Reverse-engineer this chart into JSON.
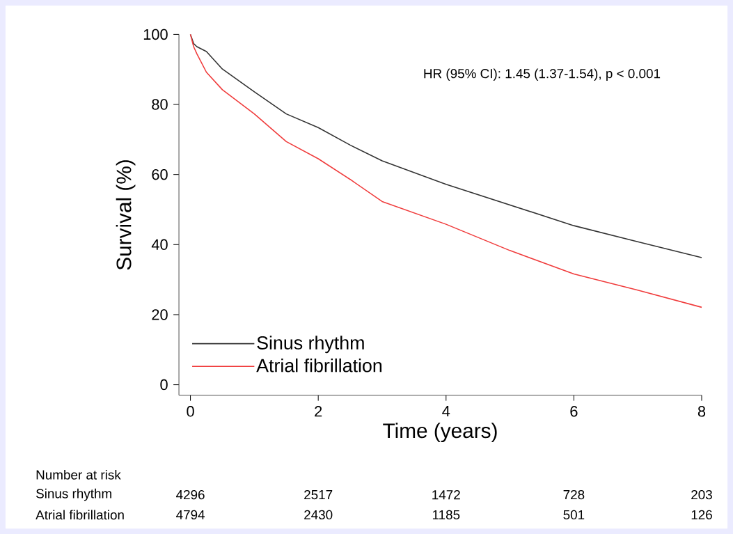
{
  "chart_data": {
    "type": "line",
    "xlabel": "Time (years)",
    "ylabel": "Survival (%)",
    "x": [
      0,
      0.05,
      0.1,
      0.25,
      0.5,
      1,
      1.5,
      2,
      2.5,
      3,
      4,
      5,
      6,
      7,
      8
    ],
    "series": [
      {
        "name": "Sinus rhythm",
        "color": "#333333",
        "values": [
          100,
          97.4,
          96.5,
          95.1,
          90.1,
          83.6,
          77.3,
          73.4,
          68.4,
          63.9,
          57.2,
          51.3,
          45.4,
          40.8,
          36.3
        ]
      },
      {
        "name": "Atrial fibrillation",
        "color": "#f03c3c",
        "values": [
          100,
          96.5,
          94.5,
          89.2,
          84.2,
          77.3,
          69.4,
          64.5,
          58.6,
          52.3,
          45.8,
          38.3,
          31.6,
          27.0,
          22.1
        ]
      }
    ],
    "xlim": [
      -0.18,
      8
    ],
    "ylim": [
      -3,
      100
    ],
    "xticks": [
      0,
      2,
      4,
      6,
      8
    ],
    "yticks": [
      0,
      20,
      40,
      60,
      80,
      100
    ],
    "legend": "bottom left",
    "grid": false,
    "marker": "none",
    "line_style": "solid",
    "annotations": [
      "HR (95% CI): 1.45 (1.37-1.54), p < 0.001",
      "Number at risk",
      "Sinus rhythm",
      "4296",
      "2517",
      "1472",
      "728",
      "203",
      "Atrial fibrillation",
      "4794",
      "2430",
      "1185",
      "501",
      "126"
    ]
  }
}
